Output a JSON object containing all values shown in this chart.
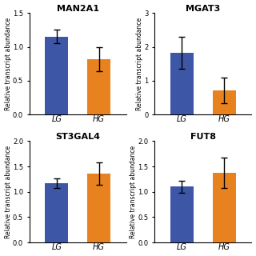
{
  "subplots": [
    {
      "title": "MAN2A1",
      "categories": [
        "LG",
        "HG"
      ],
      "values": [
        1.15,
        0.82
      ],
      "errors": [
        0.1,
        0.18
      ],
      "ylim": [
        0,
        1.5
      ],
      "yticks": [
        0.0,
        0.5,
        1.0,
        1.5
      ]
    },
    {
      "title": "MGAT3",
      "categories": [
        "LG",
        "HG"
      ],
      "values": [
        1.82,
        0.72
      ],
      "errors": [
        0.48,
        0.38
      ],
      "ylim": [
        0,
        3
      ],
      "yticks": [
        0,
        1,
        2,
        3
      ]
    },
    {
      "title": "ST3GAL4",
      "categories": [
        "LG",
        "HG"
      ],
      "values": [
        1.17,
        1.36
      ],
      "errors": [
        0.1,
        0.22
      ],
      "ylim": [
        0,
        2.0
      ],
      "yticks": [
        0.0,
        0.5,
        1.0,
        1.5,
        2.0
      ]
    },
    {
      "title": "FUT8",
      "categories": [
        "LG",
        "HG"
      ],
      "values": [
        1.1,
        1.38
      ],
      "errors": [
        0.12,
        0.3
      ],
      "ylim": [
        0,
        2.0
      ],
      "yticks": [
        0.0,
        0.5,
        1.0,
        1.5,
        2.0
      ]
    }
  ],
  "bar_colors": [
    "#3d56a6",
    "#e8821e"
  ],
  "ylabel": "Relative transcript abundance",
  "background_color": "#ffffff",
  "bar_width": 0.55,
  "title_fontsize": 8,
  "label_fontsize": 5.5,
  "tick_fontsize": 6.0,
  "xtick_fontsize": 7.0
}
